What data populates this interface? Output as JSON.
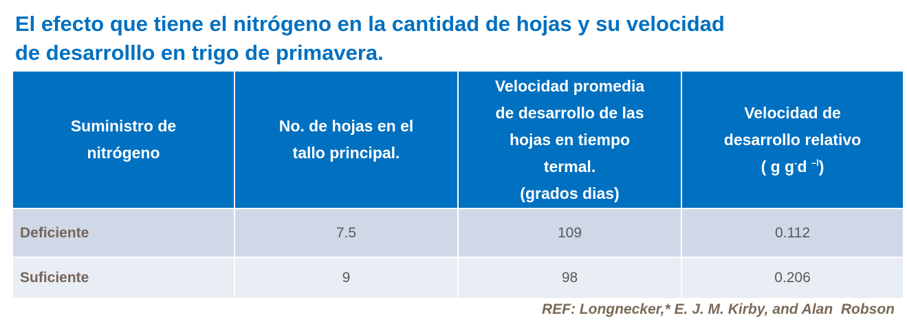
{
  "title": [
    "El efecto que tiene el nitrógeno en la cantidad de hojas y su velocidad",
    "de desarrolllo en trigo de primavera."
  ],
  "table": {
    "header": [
      [
        "Suministro de",
        "nitrógeno"
      ],
      [
        "No. de hojas en el",
        "tallo principal."
      ],
      [
        "Velocidad promedia",
        "de desarrollo de las",
        "hojas en tiempo",
        "termal.",
        "(grados dias)"
      ],
      [
        "Velocidad de",
        "desarrollo relativo"
      ]
    ],
    "header_unit": [
      "( g g",
      "-",
      "d ",
      "–l",
      ")"
    ],
    "rows": [
      [
        "Deficiente",
        7.5,
        109,
        0.112
      ],
      [
        "Suficiente",
        9,
        98,
        0.206
      ]
    ]
  },
  "reference": "REF: Longnecker,* E. J. M. Kirby, and Alan  Robson"
}
